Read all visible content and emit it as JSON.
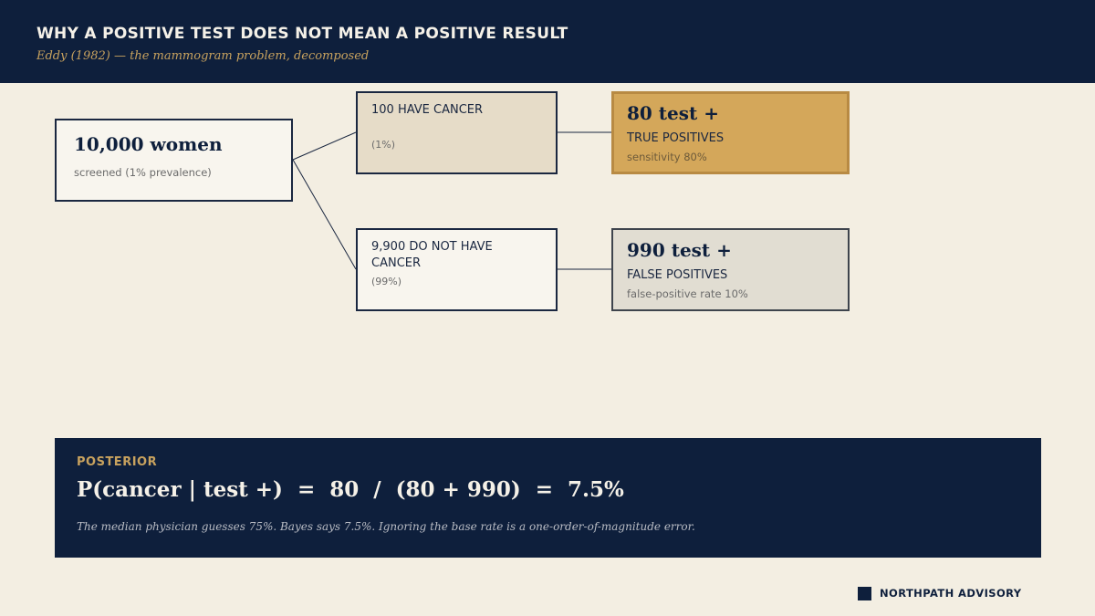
{
  "header": {
    "title": "WHY A POSITIVE TEST DOES NOT MEAN A POSITIVE RESULT",
    "subtitle": "Eddy (1982) — the mammogram problem, decomposed"
  },
  "tree": {
    "root": {
      "title": "10,000 women",
      "note": "screened (1% prevalence)"
    },
    "branches": [
      {
        "label": "100 HAVE CANCER",
        "share": "(1%)",
        "outcome": {
          "count": "80 test +",
          "label": "TRUE POSITIVES",
          "rate": "sensitivity 80%"
        }
      },
      {
        "label": "9,900 DO NOT HAVE CANCER",
        "share": "(99%)",
        "outcome": {
          "count": "990 test +",
          "label": "FALSE POSITIVES",
          "rate": "false-positive rate 10%"
        }
      }
    ]
  },
  "posterior": {
    "label": "POSTERIOR",
    "formula": "P(cancer | test +)  =  80  /  (80 + 990)  =  7.5%",
    "note": "The median physician guesses 75%. Bayes says 7.5%. Ignoring the base rate is a one-order-of-magnitude error."
  },
  "footer": {
    "brand": "NORTHPATH ADVISORY"
  },
  "colors": {
    "navy": "#0e1f3c",
    "gold": "#d4a75a",
    "background": "#f3eee2"
  }
}
